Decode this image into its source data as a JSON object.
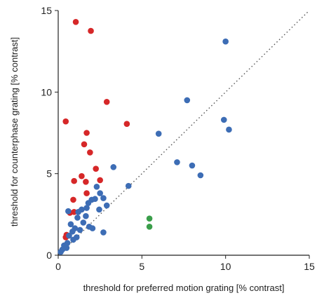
{
  "chart_data": {
    "type": "scatter",
    "xlabel": "threshold for preferred motion grating [% contrast]",
    "ylabel": "threshold for counterphase  grating [% contrast]",
    "xlim": [
      0,
      15
    ],
    "ylim": [
      0,
      15
    ],
    "x_ticks": [
      0,
      5,
      10,
      15
    ],
    "y_ticks": [
      0,
      5,
      10,
      15
    ],
    "x_tick_labels": [
      "0",
      "5",
      "10",
      "15"
    ],
    "y_tick_labels": [
      "0",
      "5",
      "10",
      "15"
    ],
    "grid": false,
    "reference_line": "diagonal y = x (dotted)",
    "series": [
      {
        "color": "#d62728",
        "points": [
          [
            1.05,
            14.3
          ],
          [
            1.95,
            13.75
          ],
          [
            2.9,
            9.4
          ],
          [
            0.45,
            8.2
          ],
          [
            4.1,
            8.05
          ],
          [
            1.7,
            7.5
          ],
          [
            1.55,
            6.8
          ],
          [
            1.9,
            6.3
          ],
          [
            2.25,
            5.3
          ],
          [
            1.4,
            4.85
          ],
          [
            0.95,
            4.55
          ],
          [
            1.65,
            4.5
          ],
          [
            2.5,
            4.6
          ],
          [
            1.7,
            3.8
          ],
          [
            0.9,
            3.4
          ],
          [
            0.7,
            2.6
          ],
          [
            0.95,
            2.65
          ],
          [
            0.5,
            1.25
          ],
          [
            0.45,
            1.1
          ]
        ]
      },
      {
        "color": "#3d6db5",
        "points": [
          [
            10.0,
            13.1
          ],
          [
            7.7,
            9.5
          ],
          [
            9.9,
            8.3
          ],
          [
            10.2,
            7.7
          ],
          [
            6.0,
            7.45
          ],
          [
            7.1,
            5.7
          ],
          [
            8.0,
            5.5
          ],
          [
            8.5,
            4.9
          ],
          [
            3.3,
            5.4
          ],
          [
            4.2,
            4.25
          ],
          [
            2.3,
            4.2
          ],
          [
            2.5,
            3.8
          ],
          [
            2.7,
            3.5
          ],
          [
            2.2,
            3.45
          ],
          [
            2.0,
            3.4
          ],
          [
            2.9,
            3.05
          ],
          [
            1.8,
            3.2
          ],
          [
            1.7,
            2.9
          ],
          [
            2.45,
            2.8
          ],
          [
            1.4,
            2.8
          ],
          [
            1.2,
            2.65
          ],
          [
            0.6,
            2.7
          ],
          [
            1.65,
            2.4
          ],
          [
            1.15,
            2.3
          ],
          [
            1.5,
            2.0
          ],
          [
            0.75,
            1.9
          ],
          [
            1.0,
            1.65
          ],
          [
            1.85,
            1.75
          ],
          [
            2.05,
            1.65
          ],
          [
            0.85,
            1.45
          ],
          [
            1.3,
            1.55
          ],
          [
            2.7,
            1.4
          ],
          [
            0.65,
            1.2
          ],
          [
            1.1,
            1.1
          ],
          [
            0.9,
            0.95
          ],
          [
            0.55,
            0.75
          ],
          [
            0.35,
            0.6
          ],
          [
            0.5,
            0.45
          ],
          [
            0.25,
            0.35
          ],
          [
            0.15,
            0.2
          ]
        ]
      },
      {
        "color": "#3a9e4a",
        "points": [
          [
            5.45,
            2.25
          ],
          [
            5.45,
            1.75
          ]
        ]
      }
    ]
  }
}
